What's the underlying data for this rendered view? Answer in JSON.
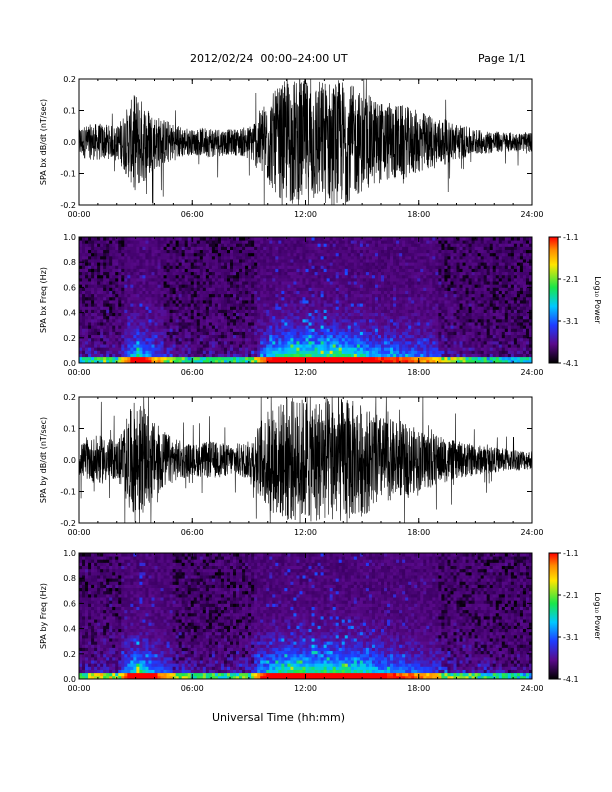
{
  "header": {
    "title": "2012/02/24  00:00–24:00 UT",
    "page": "Page 1/1"
  },
  "footer": {
    "xlabel": "Universal Time (hh:mm)"
  },
  "colors": {
    "background": "#ffffff",
    "trace": "#000000"
  },
  "chart_data": [
    {
      "type": "line",
      "ylabel": "SPA bx dB/dt (nT/sec)",
      "ylim": [
        -0.2,
        0.2
      ],
      "yticks": [
        "0.2",
        "0.1",
        "0.0",
        "-0.1",
        "-0.2"
      ],
      "xticks": [
        "00:00",
        "06:00",
        "12:00",
        "18:00",
        "24:00"
      ],
      "xlim": [
        "00:00",
        "24:00"
      ],
      "series": [
        {
          "x": [
            0,
            1,
            2,
            3,
            4,
            5,
            6,
            7,
            8,
            9,
            10,
            11,
            12,
            13,
            14,
            15,
            16,
            17,
            18,
            19,
            20,
            21,
            22,
            23,
            24
          ],
          "amplitude": [
            0.05,
            0.06,
            0.05,
            0.16,
            0.09,
            0.06,
            0.04,
            0.05,
            0.04,
            0.05,
            0.14,
            0.2,
            0.2,
            0.2,
            0.2,
            0.16,
            0.13,
            0.12,
            0.1,
            0.08,
            0.06,
            0.04,
            0.035,
            0.03,
            0.03
          ]
        }
      ]
    },
    {
      "type": "heatmap",
      "ylabel": "SPA bx Freq (Hz)",
      "ylim": [
        0,
        1.0
      ],
      "yticks": [
        "1.0",
        "0.8",
        "0.6",
        "0.4",
        "0.2",
        "0.0"
      ],
      "xticks": [
        "00:00",
        "06:00",
        "12:00",
        "18:00",
        "24:00"
      ],
      "colorbar": {
        "label": "Log₁₀ Power",
        "ticks": [
          "-1.1",
          "-2.1",
          "-3.1",
          "-4.1"
        ],
        "range": [
          -4.1,
          -1.1
        ]
      }
    },
    {
      "type": "line",
      "ylabel": "SPA by dB/dt (nT/sec)",
      "ylim": [
        -0.2,
        0.2
      ],
      "yticks": [
        "0.2",
        "0.1",
        "0.0",
        "-0.1",
        "-0.2"
      ],
      "xticks": [
        "00:00",
        "06:00",
        "12:00",
        "18:00",
        "24:00"
      ],
      "xlim": [
        "00:00",
        "24:00"
      ],
      "series": [
        {
          "x": [
            0,
            1,
            2,
            3,
            4,
            5,
            6,
            7,
            8,
            9,
            10,
            11,
            12,
            13,
            14,
            15,
            16,
            17,
            18,
            19,
            20,
            21,
            22,
            23,
            24
          ],
          "amplitude": [
            0.05,
            0.08,
            0.06,
            0.2,
            0.12,
            0.07,
            0.05,
            0.06,
            0.05,
            0.06,
            0.16,
            0.2,
            0.2,
            0.2,
            0.2,
            0.18,
            0.14,
            0.12,
            0.1,
            0.08,
            0.06,
            0.05,
            0.04,
            0.035,
            0.03
          ]
        }
      ]
    },
    {
      "type": "heatmap",
      "ylabel": "SPA by Freq (Hz)",
      "ylim": [
        0,
        1.0
      ],
      "yticks": [
        "1.0",
        "0.8",
        "0.6",
        "0.4",
        "0.2",
        "0.0"
      ],
      "xticks": [
        "00:00",
        "06:00",
        "12:00",
        "18:00",
        "24:00"
      ],
      "colorbar": {
        "label": "Log₁₀ Power",
        "ticks": [
          "-1.1",
          "-2.1",
          "-3.1",
          "-4.1"
        ],
        "range": [
          -4.1,
          -1.1
        ]
      }
    }
  ]
}
